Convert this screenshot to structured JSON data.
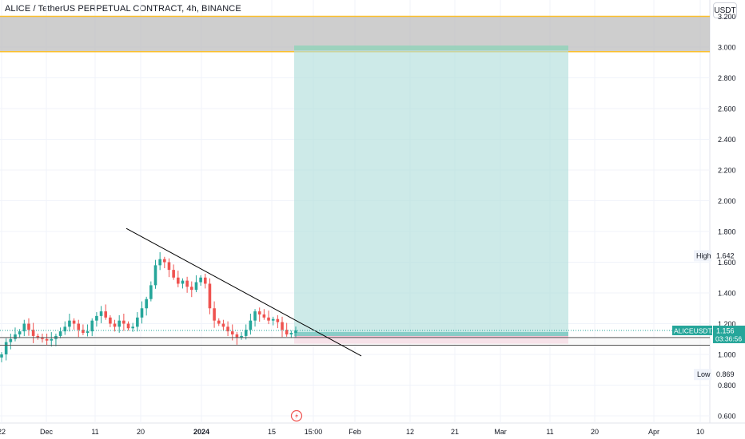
{
  "header": {
    "title": "ALICE / TetherUS PERPETUAL CONTRACT, 4h, BINANCE",
    "currency": "USDT"
  },
  "chart_data": {
    "type": "candlestick",
    "symbol": "ALICEUSDT.P",
    "y_ticks": [
      "0.600",
      "0.800",
      "1.000",
      "1.200",
      "1.400",
      "1.600",
      "1.800",
      "2.000",
      "2.200",
      "2.400",
      "2.600",
      "2.800",
      "3.000",
      "3.200"
    ],
    "x_ticks": [
      "22",
      "Dec",
      "11",
      "20",
      "2024",
      "15",
      "15:00",
      "Feb",
      "12",
      "21",
      "Mar",
      "11",
      "20",
      "Apr",
      "10"
    ],
    "ylim": [
      0.55,
      3.3
    ],
    "high": {
      "label": "High",
      "value": "1.642"
    },
    "low": {
      "label": "Low",
      "value": "0.869"
    },
    "last_price": {
      "symbol": "ALICEUSDT.P",
      "value": "1.156",
      "countdown": "03:36:56"
    },
    "colors": {
      "up": "#26a69a",
      "down": "#ef5350",
      "profit_zone": "#b2dfdb",
      "loss_zone": "#f8bbd0",
      "resistance_zone": "#bdbdbd",
      "resistance_border": "#fbc02d",
      "trendline": "#000000"
    },
    "zones": {
      "resistance": {
        "from": 2.97,
        "to": 3.2
      },
      "long_position": {
        "entry": 1.13,
        "target": 3.01,
        "stop": 1.07
      }
    },
    "support_line": {
      "top": 1.11,
      "bottom": 1.06
    },
    "trendline": {
      "start": 1.82,
      "end": 0.99
    },
    "price_path": [
      1.0,
      1.08,
      1.1,
      1.13,
      1.15,
      1.2,
      1.16,
      1.12,
      1.11,
      1.1,
      1.09,
      1.1,
      1.12,
      1.15,
      1.18,
      1.22,
      1.2,
      1.16,
      1.14,
      1.15,
      1.22,
      1.25,
      1.28,
      1.24,
      1.2,
      1.18,
      1.22,
      1.2,
      1.17,
      1.18,
      1.24,
      1.3,
      1.36,
      1.45,
      1.58,
      1.62,
      1.6,
      1.55,
      1.5,
      1.46,
      1.48,
      1.44,
      1.42,
      1.47,
      1.5,
      1.46,
      1.3,
      1.22,
      1.2,
      1.18,
      1.15,
      1.13,
      1.11,
      1.12,
      1.16,
      1.22,
      1.28,
      1.26,
      1.24,
      1.22,
      1.23,
      1.21,
      1.16,
      1.13,
      1.14,
      1.156
    ]
  }
}
